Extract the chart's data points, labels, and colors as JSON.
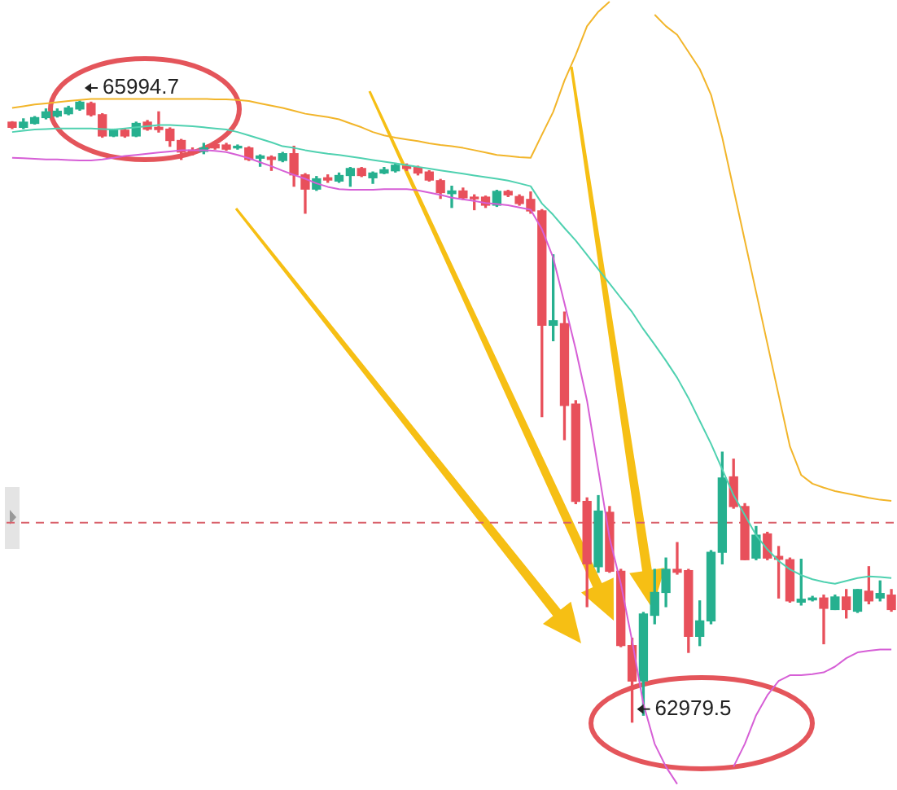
{
  "chart_data": {
    "type": "candlestick",
    "categories": [
      null,
      null,
      null,
      null,
      null,
      null,
      null,
      null,
      null,
      null,
      null,
      null,
      null,
      null,
      null,
      null,
      null,
      null,
      null,
      null,
      null,
      null,
      null,
      null,
      null,
      null,
      null,
      null,
      null,
      null,
      null,
      null,
      null,
      null,
      null,
      null,
      null,
      null,
      null,
      null,
      null,
      null,
      null,
      null,
      null,
      null,
      null,
      null,
      null,
      null,
      null,
      null,
      null,
      null,
      null,
      null,
      null,
      null,
      null,
      null,
      null,
      null,
      null,
      null,
      null,
      null,
      null,
      null,
      null,
      null,
      null,
      null,
      null,
      null,
      null,
      null,
      null,
      null,
      null
    ],
    "ohlc": [
      [
        65892,
        65894,
        65861,
        65867
      ],
      [
        65867,
        65908,
        65861,
        65892
      ],
      [
        65886,
        65919,
        65883,
        65914
      ],
      [
        65914,
        65956,
        65908,
        65942
      ],
      [
        65922,
        65956,
        65917,
        65945
      ],
      [
        65933,
        65969,
        65928,
        65961
      ],
      [
        65956,
        65994.7,
        65950,
        65989
      ],
      [
        65983,
        65989,
        65922,
        65928
      ],
      [
        65928,
        65933,
        65819,
        65825
      ],
      [
        65825,
        65858,
        65822,
        65853
      ],
      [
        65853,
        65861,
        65819,
        65825
      ],
      [
        65825,
        65892,
        65822,
        65886
      ],
      [
        65892,
        65900,
        65853,
        65858
      ],
      [
        65867,
        65942,
        65844,
        65856
      ],
      [
        65858,
        65864,
        65775,
        65803
      ],
      [
        65803,
        65808,
        65711,
        65747
      ],
      [
        65756,
        65767,
        65733,
        65747
      ],
      [
        65750,
        65789,
        65739,
        65767
      ],
      [
        65783,
        65789,
        65761,
        65767
      ],
      [
        65781,
        65789,
        65756,
        65761
      ],
      [
        65767,
        65781,
        65761,
        65775
      ],
      [
        65767,
        65772,
        65706,
        65711
      ],
      [
        65717,
        65733,
        65678,
        65728
      ],
      [
        65722,
        65728,
        65658,
        65711
      ],
      [
        65706,
        65745,
        65700,
        65739
      ],
      [
        65739,
        65775,
        65581,
        65636
      ],
      [
        65636,
        65642,
        65450,
        65567
      ],
      [
        65567,
        65628,
        65561,
        65617
      ],
      [
        65622,
        65636,
        65600,
        65611
      ],
      [
        65606,
        65645,
        65600,
        65633
      ],
      [
        65633,
        65672,
        65581,
        65667
      ],
      [
        65667,
        65672,
        65628,
        65633
      ],
      [
        65622,
        65650,
        65595,
        65645
      ],
      [
        65645,
        65672,
        65642,
        65661
      ],
      [
        65656,
        65692,
        65650,
        65683
      ],
      [
        65678,
        65689,
        65658,
        65667
      ],
      [
        65672,
        65678,
        65636,
        65645
      ],
      [
        65650,
        65656,
        65606,
        65611
      ],
      [
        65608,
        65614,
        65522,
        65550
      ],
      [
        65545,
        65581,
        65478,
        65558
      ],
      [
        65558,
        65572,
        65517,
        65525
      ],
      [
        65528,
        65539,
        65467,
        65520
      ],
      [
        65528,
        65533,
        65478,
        65489
      ],
      [
        65489,
        65561,
        65483,
        65556
      ],
      [
        65556,
        65561,
        65531,
        65539
      ],
      [
        65531,
        65539,
        65489,
        65497
      ],
      [
        65517,
        65553,
        65450,
        65461
      ],
      [
        65461,
        65467,
        64462,
        64906
      ],
      [
        64906,
        65248,
        64831,
        64928
      ],
      [
        64914,
        64970,
        64351,
        64517
      ],
      [
        64523,
        64540,
        64040,
        64051
      ],
      [
        64051,
        64068,
        63540,
        63748
      ],
      [
        63734,
        64079,
        63707,
        64004
      ],
      [
        63998,
        64026,
        63707,
        63712
      ],
      [
        63712,
        63721,
        63346,
        63351
      ],
      [
        63351,
        63387,
        62979.5,
        63179
      ],
      [
        63179,
        63512,
        63013,
        63504
      ],
      [
        63498,
        63721,
        63457,
        63609
      ],
      [
        63609,
        63776,
        63540,
        63721
      ],
      [
        63721,
        63851,
        63698,
        63707
      ],
      [
        63715,
        63721,
        63318,
        63396
      ],
      [
        63396,
        63568,
        63351,
        63471
      ],
      [
        63471,
        63812,
        63457,
        63804
      ],
      [
        63804,
        64290,
        63748,
        64165
      ],
      [
        64170,
        64256,
        64018,
        64026
      ],
      [
        64026,
        64040,
        63768,
        63768
      ],
      [
        63776,
        63929,
        63768,
        63887
      ],
      [
        63893,
        63901,
        63768,
        63776
      ],
      [
        63784,
        63832,
        63582,
        63770
      ],
      [
        63768,
        63776,
        63562,
        63568
      ],
      [
        63562,
        63770,
        63548,
        63576
      ],
      [
        63573,
        63590,
        63568,
        63582
      ],
      [
        63582,
        63596,
        63360,
        63532
      ],
      [
        63526,
        63596,
        63526,
        63587
      ],
      [
        63587,
        63623,
        63485,
        63526
      ],
      [
        63518,
        63623,
        63512,
        63623
      ],
      [
        63615,
        63734,
        63554,
        63568
      ],
      [
        63582,
        63665,
        63568,
        63604
      ],
      [
        63596,
        63623,
        63518,
        63526
      ]
    ],
    "colors": [
      "#e8505b",
      "#26b08f",
      "#26b08f",
      "#26b08f",
      "#26b08f",
      "#26b08f",
      "#26b08f",
      "#e8505b",
      "#e8505b",
      "#26b08f",
      "#e8505b",
      "#26b08f",
      "#e8505b",
      "#e8505b",
      "#e8505b",
      "#e8505b",
      "#e8505b",
      "#26b08f",
      "#e8505b",
      "#e8505b",
      "#26b08f",
      "#e8505b",
      "#26b08f",
      "#e8505b",
      "#26b08f",
      "#e8505b",
      "#e8505b",
      "#26b08f",
      "#e8505b",
      "#26b08f",
      "#26b08f",
      "#e8505b",
      "#26b08f",
      "#26b08f",
      "#26b08f",
      "#e8505b",
      "#e8505b",
      "#e8505b",
      "#e8505b",
      "#26b08f",
      "#e8505b",
      "#e8505b",
      "#e8505b",
      "#26b08f",
      "#e8505b",
      "#e8505b",
      "#e8505b",
      "#e8505b",
      "#26b08f",
      "#e8505b",
      "#e8505b",
      "#e8505b",
      "#26b08f",
      "#e8505b",
      "#e8505b",
      "#e8505b",
      "#26b08f",
      "#26b08f",
      "#26b08f",
      "#e8505b",
      "#e8505b",
      "#26b08f",
      "#26b08f",
      "#26b08f",
      "#e8505b",
      "#e8505b",
      "#26b08f",
      "#e8505b",
      "#e8505b",
      "#e8505b",
      "#26b08f",
      "#26b08f",
      "#e8505b",
      "#26b08f",
      "#e8505b",
      "#26b08f",
      "#e8505b",
      "#26b08f",
      "#e8505b"
    ],
    "series": [
      {
        "type": "line",
        "color": "#f2b52a",
        "values": [
          65961,
          65969,
          65978,
          65983,
          65989,
          65995,
          66000,
          66005,
          66005,
          66005,
          66005,
          66005,
          66005,
          66005,
          66005,
          66005,
          66005,
          66005,
          66003,
          66003,
          66000,
          65995,
          65983,
          65972,
          65961,
          65947,
          65933,
          65925,
          65917,
          65906,
          65886,
          65867,
          65844,
          65828,
          65817,
          65808,
          65800,
          65789,
          65781,
          65775,
          65767,
          65756,
          65745,
          65733,
          65728,
          65722,
          65719,
          65831,
          65942,
          66094,
          66219,
          66358,
          66428,
          66477,
          null,
          null,
          null,
          66414,
          66358,
          66316,
          66233,
          66150,
          66025,
          65817,
          65567,
          65317,
          65067,
          64817,
          64567,
          64318,
          64179,
          64137,
          64118,
          64101,
          64090,
          64079,
          64068,
          64059,
          64054
        ]
      },
      {
        "type": "line",
        "color": "#4fd1b0",
        "values": [
          65844,
          65850,
          65856,
          65858,
          65861,
          65861,
          65861,
          65861,
          65858,
          65856,
          65861,
          65867,
          65872,
          65878,
          65878,
          65875,
          65872,
          65867,
          65861,
          65856,
          65844,
          65828,
          65811,
          65794,
          65775,
          65767,
          65756,
          65747,
          65739,
          65733,
          65725,
          65717,
          65708,
          65700,
          65692,
          65683,
          65675,
          65667,
          65658,
          65650,
          65642,
          65633,
          65625,
          65617,
          65608,
          65595,
          65581,
          65497,
          65442,
          65378,
          65317,
          65248,
          65178,
          65109,
          65039,
          64970,
          64887,
          64812,
          64734,
          64651,
          64553,
          64442,
          64331,
          64206,
          64081,
          63984,
          63887,
          63818,
          63762,
          63721,
          63693,
          63673,
          63660,
          63651,
          63665,
          63679,
          63687,
          63684,
          63679
        ]
      },
      {
        "type": "line",
        "color": "#d65fd6",
        "values": [
          65719,
          65717,
          65714,
          65711,
          65711,
          65708,
          65706,
          65706,
          65711,
          65719,
          65728,
          65733,
          65739,
          65745,
          65750,
          65756,
          65756,
          65756,
          65753,
          65747,
          65733,
          65717,
          65697,
          65678,
          65656,
          65636,
          65617,
          65595,
          65578,
          65567,
          65564,
          65564,
          65564,
          65567,
          65567,
          65567,
          65561,
          65550,
          65539,
          65525,
          65517,
          65509,
          65500,
          65495,
          65489,
          65478,
          65467,
          65372,
          65234,
          65012,
          64789,
          64540,
          64206,
          63873,
          63651,
          63374,
          63068,
          62874,
          62763,
          62679,
          null,
          null,
          null,
          null,
          62763,
          62874,
          63013,
          63110,
          63179,
          63207,
          63207,
          63212,
          63221,
          63249,
          63290,
          63318,
          63326,
          63332,
          63332
        ]
      }
    ],
    "ylim": [
      62650,
      66485
    ],
    "ref_lines": [
      {
        "axis": "y",
        "value": 63948,
        "color": "#d9606a",
        "line_style": "dashed"
      }
    ],
    "annotations": [
      {
        "text": "65994.7",
        "y": 65994.7
      },
      "62979.5"
    ],
    "tick_labels": false,
    "legend": false
  }
}
